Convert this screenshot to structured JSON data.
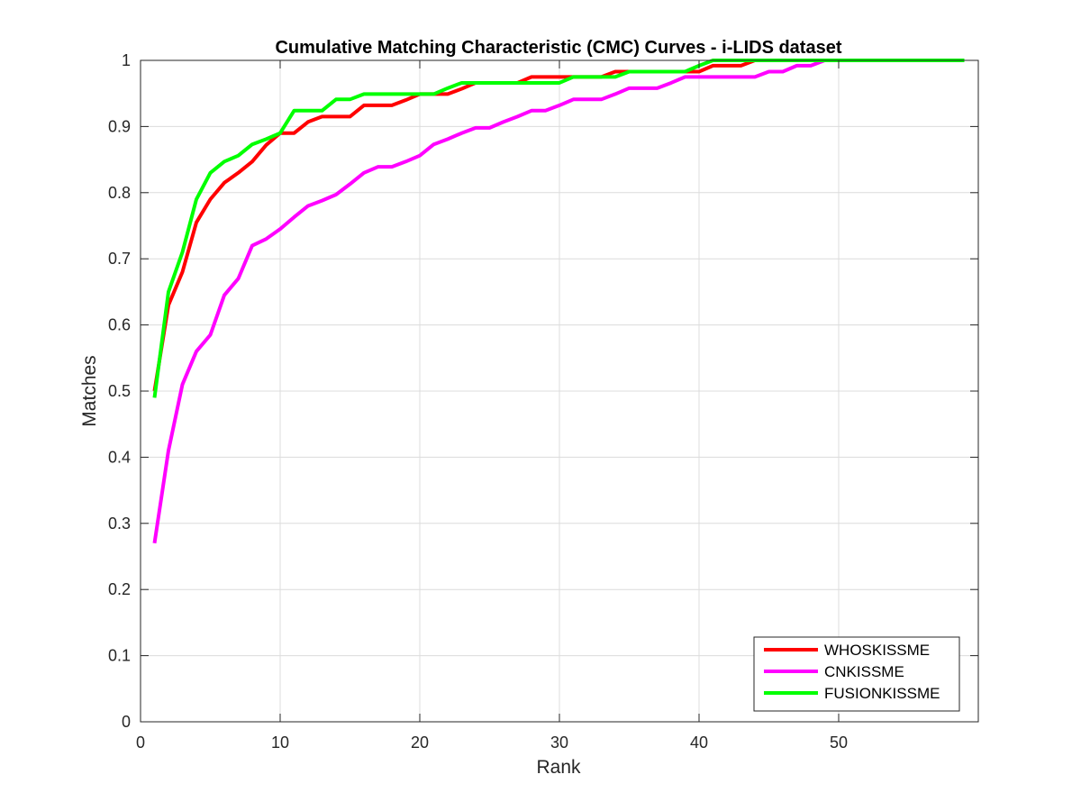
{
  "chart_data": {
    "type": "line",
    "title": "Cumulative Matching Characteristic (CMC) Curves - i-LIDS dataset",
    "xlabel": "Rank",
    "ylabel": "Matches",
    "xlim": [
      0,
      60
    ],
    "ylim": [
      0,
      1
    ],
    "xticks": [
      0,
      10,
      20,
      30,
      40,
      50
    ],
    "yticks": [
      0,
      0.1,
      0.2,
      0.3,
      0.4,
      0.5,
      0.6,
      0.7,
      0.8,
      0.9,
      1
    ],
    "xtick_labels": [
      "0",
      "10",
      "20",
      "30",
      "40",
      "50"
    ],
    "ytick_labels": [
      "0",
      "0.1",
      "0.2",
      "0.3",
      "0.4",
      "0.5",
      "0.6",
      "0.7",
      "0.8",
      "0.9",
      "1"
    ],
    "grid": true,
    "legend_position": "bottom-right",
    "x": [
      1,
      2,
      3,
      4,
      5,
      6,
      7,
      8,
      9,
      10,
      11,
      12,
      13,
      14,
      15,
      16,
      17,
      18,
      19,
      20,
      21,
      22,
      23,
      24,
      25,
      26,
      27,
      28,
      29,
      30,
      31,
      32,
      33,
      34,
      35,
      36,
      37,
      38,
      39,
      40,
      41,
      42,
      43,
      44,
      45,
      46,
      47,
      48,
      49,
      50,
      51,
      52,
      53,
      54,
      55,
      56,
      57,
      58,
      59
    ],
    "series": [
      {
        "name": "WHOSKISSME",
        "color": "#ff0000",
        "values": [
          0.5,
          0.63,
          0.68,
          0.755,
          0.79,
          0.815,
          0.83,
          0.847,
          0.872,
          0.89,
          0.89,
          0.907,
          0.915,
          0.915,
          0.915,
          0.932,
          0.932,
          0.932,
          0.94,
          0.949,
          0.949,
          0.949,
          0.957,
          0.966,
          0.966,
          0.966,
          0.966,
          0.975,
          0.975,
          0.975,
          0.975,
          0.975,
          0.975,
          0.983,
          0.983,
          0.983,
          0.983,
          0.983,
          0.983,
          0.983,
          0.992,
          0.992,
          0.992,
          1,
          1,
          1,
          1,
          1,
          1,
          1,
          1,
          1,
          1,
          1,
          1,
          1,
          1,
          1,
          1
        ]
      },
      {
        "name": "CNKISSME",
        "color": "#ff00ff",
        "values": [
          0.27,
          0.41,
          0.51,
          0.56,
          0.585,
          0.645,
          0.67,
          0.72,
          0.73,
          0.745,
          0.763,
          0.78,
          0.788,
          0.797,
          0.813,
          0.83,
          0.839,
          0.839,
          0.847,
          0.856,
          0.873,
          0.881,
          0.89,
          0.898,
          0.898,
          0.907,
          0.915,
          0.924,
          0.924,
          0.932,
          0.941,
          0.941,
          0.941,
          0.949,
          0.958,
          0.958,
          0.958,
          0.966,
          0.975,
          0.975,
          0.975,
          0.975,
          0.975,
          0.975,
          0.983,
          0.983,
          0.992,
          0.992,
          1,
          1,
          1,
          1,
          1,
          1,
          1,
          1,
          1,
          1,
          1
        ]
      },
      {
        "name": "FUSIONKISSME",
        "color": "#00ff00",
        "values": [
          0.49,
          0.65,
          0.71,
          0.79,
          0.83,
          0.847,
          0.856,
          0.873,
          0.881,
          0.89,
          0.924,
          0.924,
          0.924,
          0.941,
          0.941,
          0.949,
          0.949,
          0.949,
          0.949,
          0.949,
          0.949,
          0.958,
          0.966,
          0.966,
          0.966,
          0.966,
          0.966,
          0.966,
          0.966,
          0.966,
          0.975,
          0.975,
          0.975,
          0.975,
          0.983,
          0.983,
          0.983,
          0.983,
          0.983,
          0.992,
          1,
          1,
          1,
          1,
          1,
          1,
          1,
          1,
          1,
          1,
          1,
          1,
          1,
          1,
          1,
          1,
          1,
          1,
          1
        ]
      }
    ]
  }
}
